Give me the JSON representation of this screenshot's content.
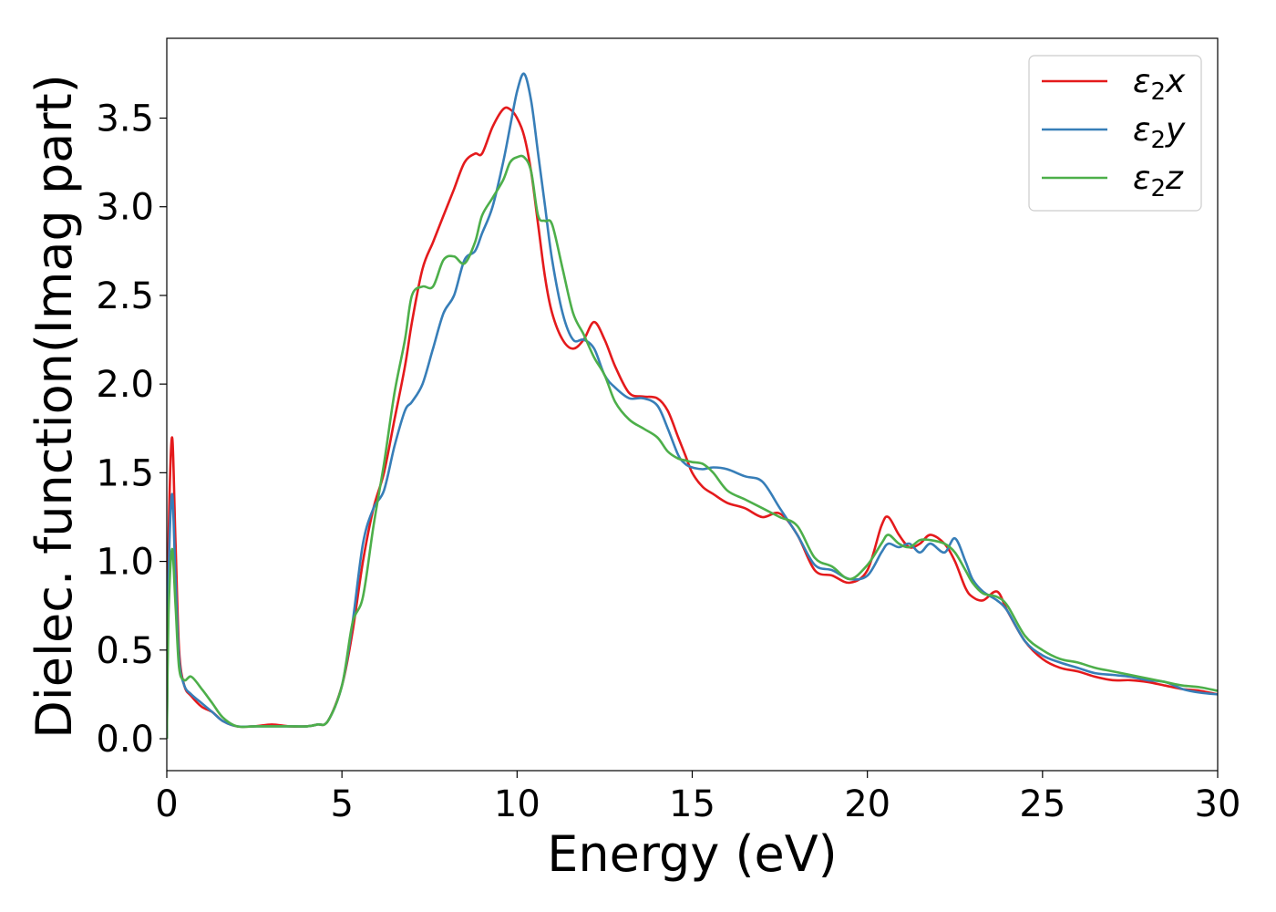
{
  "chart_data": {
    "type": "line",
    "title": "",
    "xlabel": "Energy (eV)",
    "ylabel": "Dielec. function(Imag part)",
    "xlim": [
      0,
      30
    ],
    "ylim": [
      -0.18,
      3.95
    ],
    "xticks": [
      0,
      5,
      10,
      15,
      20,
      25,
      30
    ],
    "xtick_labels": [
      "0",
      "5",
      "10",
      "15",
      "20",
      "25",
      "30"
    ],
    "yticks": [
      0.0,
      0.5,
      1.0,
      1.5,
      2.0,
      2.5,
      3.0,
      3.5
    ],
    "ytick_labels": [
      "0.0",
      "0.5",
      "1.0",
      "1.5",
      "2.0",
      "2.5",
      "3.0",
      "3.5"
    ],
    "grid": false,
    "legend_position": "top-right",
    "series": [
      {
        "name": "ε2x",
        "legend": {
          "base": "ε",
          "sub": "2",
          "suffix": "x"
        },
        "color": "#e41a1c",
        "x": [
          0,
          0.05,
          0.15,
          0.25,
          0.35,
          0.5,
          0.7,
          1.0,
          1.3,
          1.6,
          2.0,
          2.5,
          3.0,
          3.5,
          4.0,
          4.3,
          4.6,
          5.0,
          5.3,
          5.6,
          5.9,
          6.2,
          6.5,
          6.8,
          7.0,
          7.3,
          7.6,
          7.9,
          8.2,
          8.5,
          8.8,
          9.0,
          9.3,
          9.6,
          9.8,
          10.0,
          10.2,
          10.4,
          10.6,
          10.8,
          11.0,
          11.3,
          11.6,
          11.9,
          12.2,
          12.5,
          12.8,
          13.2,
          13.6,
          14.0,
          14.3,
          14.6,
          14.8,
          15.0,
          15.3,
          15.6,
          16.0,
          16.5,
          17.0,
          17.5,
          18.0,
          18.5,
          19.0,
          19.5,
          20.0,
          20.4,
          20.6,
          20.9,
          21.2,
          21.5,
          21.8,
          22.2,
          22.5,
          22.8,
          23.0,
          23.3,
          23.7,
          24.0,
          24.5,
          25.0,
          25.5,
          26.0,
          26.5,
          27.0,
          27.5,
          28.0,
          28.5,
          29.0,
          29.5,
          30.0
        ],
        "values": [
          0.0,
          1.1,
          1.7,
          1.1,
          0.5,
          0.3,
          0.24,
          0.18,
          0.15,
          0.1,
          0.07,
          0.07,
          0.08,
          0.07,
          0.07,
          0.08,
          0.1,
          0.3,
          0.6,
          1.0,
          1.3,
          1.5,
          1.8,
          2.1,
          2.35,
          2.65,
          2.8,
          2.95,
          3.1,
          3.25,
          3.3,
          3.3,
          3.45,
          3.55,
          3.55,
          3.5,
          3.4,
          3.2,
          2.9,
          2.6,
          2.4,
          2.25,
          2.2,
          2.25,
          2.35,
          2.25,
          2.1,
          1.95,
          1.93,
          1.92,
          1.85,
          1.7,
          1.6,
          1.5,
          1.42,
          1.38,
          1.33,
          1.3,
          1.25,
          1.27,
          1.15,
          0.95,
          0.92,
          0.88,
          0.95,
          1.2,
          1.25,
          1.15,
          1.08,
          1.1,
          1.15,
          1.1,
          1.0,
          0.85,
          0.8,
          0.78,
          0.83,
          0.72,
          0.55,
          0.45,
          0.4,
          0.38,
          0.35,
          0.33,
          0.33,
          0.32,
          0.3,
          0.28,
          0.27,
          0.25
        ]
      },
      {
        "name": "ε2y",
        "legend": {
          "base": "ε",
          "sub": "2",
          "suffix": "y"
        },
        "color": "#377eb8",
        "x": [
          0,
          0.05,
          0.15,
          0.25,
          0.35,
          0.5,
          0.7,
          1.0,
          1.3,
          1.6,
          2.0,
          2.5,
          3.0,
          3.5,
          4.0,
          4.3,
          4.6,
          5.0,
          5.3,
          5.6,
          5.9,
          6.2,
          6.5,
          6.8,
          7.0,
          7.3,
          7.6,
          7.9,
          8.2,
          8.5,
          8.8,
          9.0,
          9.3,
          9.6,
          9.8,
          10.0,
          10.2,
          10.4,
          10.6,
          10.8,
          11.0,
          11.3,
          11.6,
          11.9,
          12.2,
          12.5,
          12.8,
          13.2,
          13.6,
          14.0,
          14.3,
          14.6,
          14.8,
          15.0,
          15.3,
          15.6,
          16.0,
          16.5,
          17.0,
          17.5,
          18.0,
          18.5,
          19.0,
          19.5,
          20.0,
          20.4,
          20.6,
          20.9,
          21.2,
          21.5,
          21.8,
          22.2,
          22.5,
          22.8,
          23.0,
          23.3,
          23.7,
          24.0,
          24.5,
          25.0,
          25.5,
          26.0,
          26.5,
          27.0,
          27.5,
          28.0,
          28.5,
          29.0,
          29.5,
          30.0
        ],
        "values": [
          0.0,
          0.9,
          1.38,
          0.9,
          0.45,
          0.3,
          0.25,
          0.2,
          0.15,
          0.1,
          0.07,
          0.07,
          0.07,
          0.07,
          0.07,
          0.08,
          0.1,
          0.3,
          0.65,
          1.1,
          1.3,
          1.4,
          1.65,
          1.85,
          1.9,
          2.0,
          2.2,
          2.4,
          2.5,
          2.7,
          2.75,
          2.85,
          3.0,
          3.25,
          3.45,
          3.65,
          3.75,
          3.6,
          3.3,
          3.0,
          2.7,
          2.4,
          2.25,
          2.25,
          2.2,
          2.05,
          1.98,
          1.92,
          1.92,
          1.88,
          1.75,
          1.6,
          1.55,
          1.53,
          1.52,
          1.53,
          1.52,
          1.48,
          1.45,
          1.3,
          1.15,
          0.98,
          0.95,
          0.9,
          0.92,
          1.05,
          1.1,
          1.08,
          1.1,
          1.05,
          1.1,
          1.05,
          1.13,
          1.0,
          0.9,
          0.83,
          0.78,
          0.72,
          0.55,
          0.47,
          0.43,
          0.4,
          0.37,
          0.36,
          0.35,
          0.33,
          0.32,
          0.28,
          0.26,
          0.25
        ]
      },
      {
        "name": "ε2z",
        "legend": {
          "base": "ε",
          "sub": "2",
          "suffix": "z"
        },
        "color": "#4daf4a",
        "x": [
          0,
          0.05,
          0.15,
          0.25,
          0.35,
          0.5,
          0.7,
          1.0,
          1.3,
          1.6,
          2.0,
          2.5,
          3.0,
          3.5,
          4.0,
          4.3,
          4.6,
          5.0,
          5.3,
          5.6,
          5.9,
          6.2,
          6.5,
          6.8,
          7.0,
          7.3,
          7.6,
          7.9,
          8.2,
          8.5,
          8.8,
          9.0,
          9.3,
          9.6,
          9.8,
          10.0,
          10.2,
          10.4,
          10.6,
          10.8,
          11.0,
          11.3,
          11.6,
          11.9,
          12.2,
          12.5,
          12.8,
          13.2,
          13.6,
          14.0,
          14.3,
          14.6,
          14.8,
          15.0,
          15.3,
          15.6,
          16.0,
          16.5,
          17.0,
          17.5,
          18.0,
          18.5,
          19.0,
          19.5,
          20.0,
          20.4,
          20.6,
          20.9,
          21.2,
          21.5,
          21.8,
          22.2,
          22.5,
          22.8,
          23.0,
          23.3,
          23.7,
          24.0,
          24.5,
          25.0,
          25.5,
          26.0,
          26.5,
          27.0,
          27.5,
          28.0,
          28.5,
          29.0,
          29.5,
          30.0
        ],
        "values": [
          0.0,
          0.7,
          1.07,
          0.75,
          0.4,
          0.33,
          0.35,
          0.28,
          0.2,
          0.12,
          0.07,
          0.07,
          0.07,
          0.07,
          0.07,
          0.08,
          0.1,
          0.3,
          0.65,
          0.8,
          1.2,
          1.55,
          1.95,
          2.25,
          2.5,
          2.55,
          2.55,
          2.7,
          2.72,
          2.68,
          2.8,
          2.95,
          3.05,
          3.15,
          3.25,
          3.28,
          3.28,
          3.2,
          2.95,
          2.92,
          2.9,
          2.65,
          2.4,
          2.28,
          2.15,
          2.05,
          1.9,
          1.8,
          1.75,
          1.7,
          1.62,
          1.58,
          1.57,
          1.56,
          1.55,
          1.5,
          1.4,
          1.35,
          1.3,
          1.25,
          1.2,
          1.02,
          0.97,
          0.9,
          0.98,
          1.1,
          1.15,
          1.1,
          1.08,
          1.12,
          1.12,
          1.1,
          1.05,
          0.95,
          0.88,
          0.82,
          0.8,
          0.75,
          0.58,
          0.5,
          0.45,
          0.43,
          0.4,
          0.38,
          0.36,
          0.34,
          0.32,
          0.3,
          0.29,
          0.27
        ]
      }
    ]
  }
}
